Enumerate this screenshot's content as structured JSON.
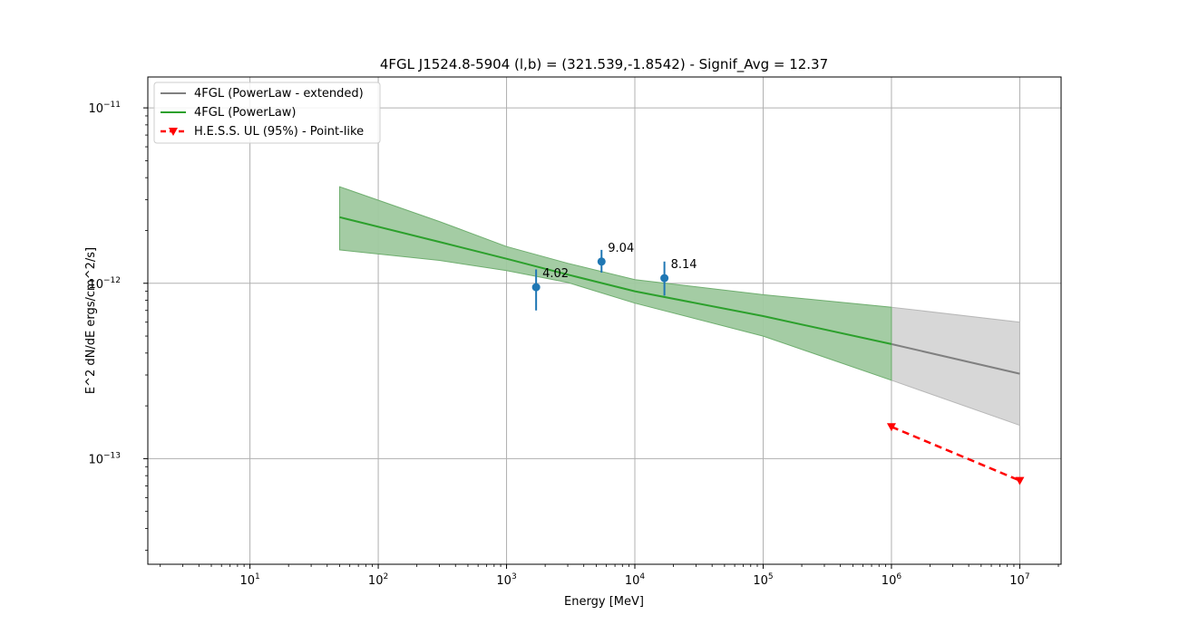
{
  "chart_data": {
    "type": "line",
    "title": "4FGL J1524.8-5904  (l,b) = (321.539,-1.8542) - Signif_Avg = 12.37",
    "xlabel": "Energy [MeV]",
    "ylabel": "E^2 dN/dE ergs/cm^2/s]",
    "xscale": "log",
    "yscale": "log",
    "xlim": [
      1.6,
      21000000
    ],
    "ylim": [
      2.5e-14,
      1.5e-11
    ],
    "grid": true,
    "legend_position": "top-left",
    "x_ticks": [
      {
        "value": 10,
        "base": "10",
        "exp": "1"
      },
      {
        "value": 100,
        "base": "10",
        "exp": "2"
      },
      {
        "value": 1000,
        "base": "10",
        "exp": "3"
      },
      {
        "value": 10000,
        "base": "10",
        "exp": "4"
      },
      {
        "value": 100000,
        "base": "10",
        "exp": "5"
      },
      {
        "value": 1000000,
        "base": "10",
        "exp": "6"
      },
      {
        "value": 10000000,
        "base": "10",
        "exp": "7"
      }
    ],
    "y_ticks": [
      {
        "value": 1e-13,
        "base": "10",
        "exp": "−13"
      },
      {
        "value": 1e-12,
        "base": "10",
        "exp": "−12"
      },
      {
        "value": 1e-11,
        "base": "10",
        "exp": "−11"
      }
    ],
    "series": [
      {
        "name": "4FGL (PowerLaw - extended)",
        "kind": "line-band",
        "color": "#808080",
        "band_color": "#d3d3d3",
        "x": [
          1000000,
          10000000
        ],
        "y": [
          4.5e-13,
          3.05e-13
        ],
        "band_lower": [
          2.8e-13,
          1.55e-13
        ],
        "band_upper": [
          7.3e-13,
          6e-13
        ]
      },
      {
        "name": "4FGL (PowerLaw)",
        "kind": "line-band",
        "color": "#2ca02c",
        "band_color": "#9fc99f",
        "x": [
          50,
          300,
          1000,
          3000,
          10000,
          100000,
          1000000
        ],
        "y": [
          2.38e-12,
          1.72e-12,
          1.38e-12,
          1.12e-12,
          9e-13,
          6.5e-13,
          4.5e-13
        ],
        "band_lower": [
          1.55e-12,
          1.35e-12,
          1.18e-12,
          1.01e-12,
          7.7e-13,
          5e-13,
          2.8e-13
        ],
        "band_upper": [
          3.55e-12,
          2.25e-12,
          1.62e-12,
          1.3e-12,
          1.05e-12,
          8.6e-13,
          7.3e-13
        ]
      },
      {
        "name": "H.E.S.S. UL (95%) - Point-like",
        "kind": "upper-limit",
        "color": "#ff0000",
        "x": [
          1000000,
          10000000
        ],
        "y": [
          1.52e-13,
          7.5e-14
        ]
      }
    ],
    "data_points": {
      "color": "#1f77b4",
      "points": [
        {
          "x": 1700,
          "y": 9.5e-13,
          "y_low": 7e-13,
          "y_high": 1.2e-12,
          "label": "4.02"
        },
        {
          "x": 5500,
          "y": 1.33e-12,
          "y_low": 1.15e-12,
          "y_high": 1.55e-12,
          "label": "9.04"
        },
        {
          "x": 17000,
          "y": 1.07e-12,
          "y_low": 8.5e-13,
          "y_high": 1.33e-12,
          "label": "8.14"
        }
      ]
    }
  }
}
